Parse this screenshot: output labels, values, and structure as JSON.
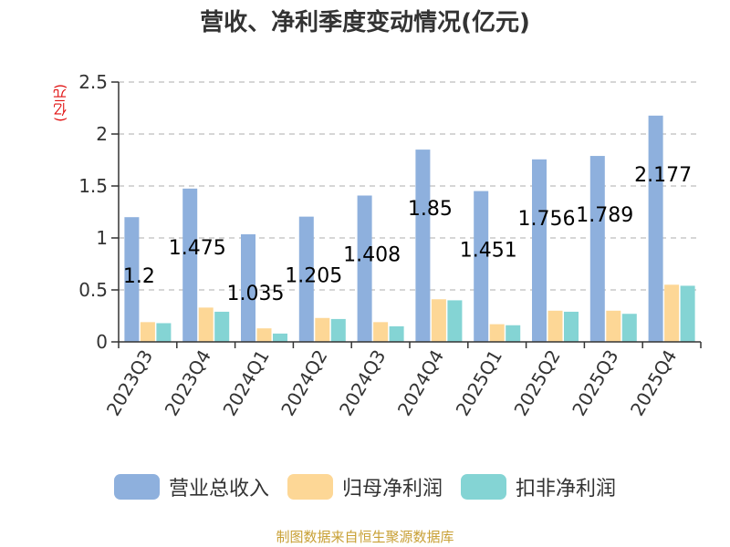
{
  "chart_data": {
    "type": "bar",
    "title": "营收、净利季度变动情况(亿元)",
    "ylabel": "(亿元)",
    "ylim": [
      0,
      2.5
    ],
    "yticks": [
      "0",
      "0.5",
      "1",
      "1.5",
      "2",
      "2.5"
    ],
    "grid": true,
    "legend_position": "bottom",
    "categories": [
      "2023Q3",
      "2023Q4",
      "2024Q1",
      "2024Q2",
      "2024Q3",
      "2024Q4",
      "2025Q1",
      "2025Q2",
      "2025Q3",
      "2025Q4"
    ],
    "series": [
      {
        "name": "营业总收入",
        "color": "#8eb0dd",
        "values": [
          1.2,
          1.475,
          1.035,
          1.205,
          1.408,
          1.85,
          1.451,
          1.756,
          1.789,
          2.177
        ]
      },
      {
        "name": "归母净利润",
        "color": "#fdd796",
        "values": [
          0.19,
          0.33,
          0.13,
          0.23,
          0.19,
          0.41,
          0.17,
          0.3,
          0.3,
          0.55
        ]
      },
      {
        "name": "扣非净利润",
        "color": "#84d4d4",
        "values": [
          0.18,
          0.29,
          0.08,
          0.22,
          0.15,
          0.4,
          0.16,
          0.29,
          0.27,
          0.54
        ]
      }
    ],
    "data_labels": [
      "1.2",
      "1.475",
      "1.035",
      "1.205",
      "1.408",
      "1.85",
      "1.451",
      "1.756",
      "1.789",
      "2.177"
    ]
  },
  "source": "制图数据来自恒生聚源数据库"
}
